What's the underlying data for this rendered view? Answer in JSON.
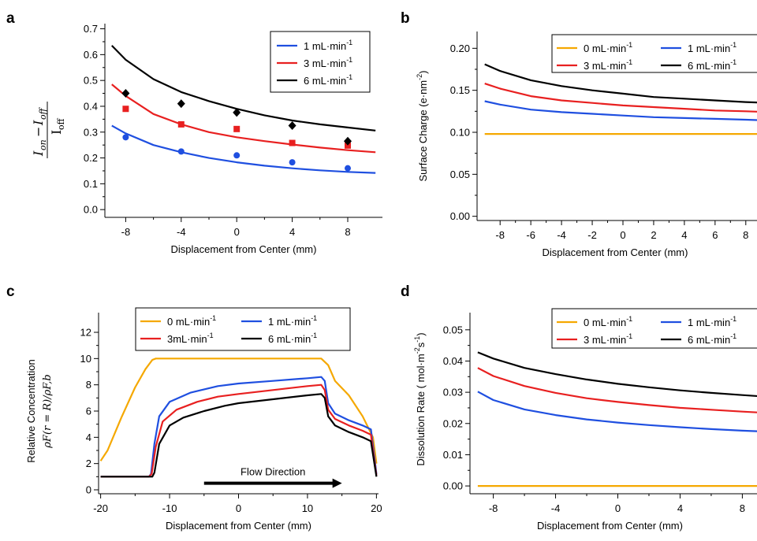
{
  "figure": {
    "panels": [
      {
        "letter": "a",
        "chart_data": {
          "type": "line",
          "xlabel": "Displacement from Center (mm)",
          "ylabel_expr": {
            "num_a": "I",
            "num_a_sub": "on",
            "minus": "−",
            "num_b": "I",
            "num_b_sub": "off",
            "den": "I",
            "den_sub": "off"
          },
          "xlim": [
            -9.5,
            10.5
          ],
          "ylim": [
            -0.03,
            0.72
          ],
          "xticks": [
            -8,
            -4,
            0,
            4,
            8
          ],
          "yticks": [
            0.0,
            0.1,
            0.2,
            0.3,
            0.4,
            0.5,
            0.6,
            0.7
          ],
          "ytick_format": "0.1",
          "grid": false,
          "legend_position": "top-right",
          "series": [
            {
              "name": "1 mL·min",
              "sup": "-1",
              "color": "#1f4fe0",
              "marker": "circle",
              "x": [
                -8,
                -4,
                0,
                4,
                8
              ],
              "y": [
                0.28,
                0.225,
                0.21,
                0.183,
                0.16
              ],
              "fit_x": [
                -9,
                -8,
                -6,
                -4,
                -2,
                0,
                2,
                4,
                6,
                8,
                10
              ],
              "fit_y": [
                0.325,
                0.295,
                0.25,
                0.222,
                0.2,
                0.183,
                0.17,
                0.16,
                0.152,
                0.146,
                0.142
              ]
            },
            {
              "name": "3 mL·min",
              "sup": "-1",
              "color": "#e82020",
              "marker": "square",
              "x": [
                -8,
                -4,
                0,
                4,
                8
              ],
              "y": [
                0.39,
                0.33,
                0.312,
                0.258,
                0.248
              ],
              "fit_x": [
                -9,
                -8,
                -6,
                -4,
                -2,
                0,
                2,
                4,
                6,
                8,
                10
              ],
              "fit_y": [
                0.485,
                0.44,
                0.37,
                0.33,
                0.3,
                0.28,
                0.265,
                0.252,
                0.24,
                0.23,
                0.222
              ]
            },
            {
              "name": "6 mL·min",
              "sup": "-1",
              "color": "#000000",
              "marker": "diamond",
              "x": [
                -8,
                -4,
                0,
                4,
                8
              ],
              "y": [
                0.45,
                0.41,
                0.376,
                0.325,
                0.265
              ],
              "fit_x": [
                -9,
                -8,
                -6,
                -4,
                -2,
                0,
                2,
                4,
                6,
                8,
                10
              ],
              "fit_y": [
                0.635,
                0.58,
                0.505,
                0.455,
                0.42,
                0.39,
                0.365,
                0.345,
                0.33,
                0.318,
                0.306
              ]
            }
          ]
        }
      },
      {
        "letter": "b",
        "chart_data": {
          "type": "line",
          "xlabel": "Displacement from Center (mm)",
          "ylabel": "Surface Charge (e·nm",
          "ylabel_sup": "-2",
          "ylabel_close": ")",
          "xlim": [
            -9.5,
            9.5
          ],
          "ylim": [
            -0.005,
            0.22
          ],
          "xticks": [
            -8,
            -6,
            -4,
            -2,
            0,
            2,
            4,
            6,
            8
          ],
          "yticks": [
            0.0,
            0.05,
            0.1,
            0.15,
            0.2
          ],
          "ytick_format": "0.01",
          "grid": false,
          "legend_position": "top-right",
          "series": [
            {
              "name": "0 mL·min",
              "sup": "-1",
              "color": "#f5a800",
              "x": [
                -9,
                -6,
                -3,
                0,
                3,
                6,
                9.5
              ],
              "y": [
                0.098,
                0.098,
                0.098,
                0.098,
                0.098,
                0.098,
                0.098
              ]
            },
            {
              "name": "1 mL·min",
              "sup": "-1",
              "color": "#1f4fe0",
              "x": [
                -9,
                -8,
                -6,
                -4,
                -2,
                0,
                2,
                4,
                6,
                8,
                9.5
              ],
              "y": [
                0.137,
                0.133,
                0.127,
                0.124,
                0.122,
                0.12,
                0.118,
                0.117,
                0.116,
                0.115,
                0.114
              ]
            },
            {
              "name": "3 mL·min",
              "sup": "-1",
              "color": "#e82020",
              "x": [
                -9,
                -8,
                -6,
                -4,
                -2,
                0,
                2,
                4,
                6,
                8,
                9.5
              ],
              "y": [
                0.158,
                0.152,
                0.143,
                0.138,
                0.135,
                0.132,
                0.13,
                0.128,
                0.126,
                0.125,
                0.124
              ]
            },
            {
              "name": "6 mL·min",
              "sup": "-1",
              "color": "#000000",
              "x": [
                -9,
                -8,
                -6,
                -4,
                -2,
                0,
                2,
                4,
                6,
                8,
                9.5
              ],
              "y": [
                0.181,
                0.173,
                0.162,
                0.155,
                0.15,
                0.146,
                0.142,
                0.14,
                0.138,
                0.136,
                0.135
              ]
            }
          ]
        }
      },
      {
        "letter": "c",
        "chart_data": {
          "type": "line",
          "xlabel": "Displacement from Center (mm)",
          "ylabel_line1": "Relative Concentration",
          "ylabel_line2": "ρF(r = R)/ρF,b",
          "xlim": [
            -20.3,
            20.3
          ],
          "ylim": [
            -0.3,
            13.5
          ],
          "xticks": [
            -20,
            -10,
            0,
            10,
            20
          ],
          "yticks": [
            0,
            2,
            4,
            6,
            8,
            10,
            12
          ],
          "ytick_format": "1",
          "grid": false,
          "legend_position": "top",
          "annotation": "Flow Direction",
          "arrow": {
            "from_x": -5,
            "to_x": 15,
            "y": 0.5
          },
          "series": [
            {
              "name": "0 mL·min",
              "sup": "-1",
              "color": "#f5a800",
              "x": [
                -20,
                -19,
                -17,
                -15,
                -13.5,
                -12.5,
                -12,
                -10,
                0,
                10,
                12,
                13,
                14,
                16,
                18,
                19.5,
                20
              ],
              "y": [
                2.2,
                3,
                5.5,
                7.8,
                9.2,
                9.9,
                10,
                10,
                10,
                10,
                10,
                9.5,
                8.3,
                7.2,
                5.6,
                4,
                2
              ]
            },
            {
              "name": "1 mL·min",
              "sup": "-1",
              "color": "#1f4fe0",
              "x": [
                -20,
                -13,
                -12.7,
                -12.2,
                -11.5,
                -10,
                -7,
                -3,
                0,
                5,
                10,
                12,
                12.5,
                13,
                14,
                16,
                18,
                19.2,
                19.7,
                20
              ],
              "y": [
                1,
                1,
                1.2,
                3.5,
                5.6,
                6.7,
                7.4,
                7.9,
                8.1,
                8.3,
                8.5,
                8.6,
                8.3,
                6.6,
                5.8,
                5.3,
                4.9,
                4.6,
                2.5,
                1.2
              ]
            },
            {
              "name": "3mL·min",
              "sup": "-1",
              "color": "#e82020",
              "x": [
                -20,
                -13,
                -12.6,
                -12,
                -11,
                -9,
                -6,
                -3,
                0,
                5,
                10,
                12,
                12.5,
                13,
                14,
                16,
                18,
                19.2,
                19.7,
                20
              ],
              "y": [
                1,
                1,
                1.2,
                3.3,
                5.2,
                6.1,
                6.7,
                7.1,
                7.3,
                7.6,
                7.9,
                8,
                7.6,
                6.1,
                5.4,
                4.9,
                4.5,
                4.2,
                2.2,
                1.1
              ]
            },
            {
              "name": "6 mL·min",
              "sup": "-1",
              "color": "#000000",
              "x": [
                -20,
                -12.5,
                -12.2,
                -11.5,
                -10,
                -8,
                -5,
                -2,
                0,
                5,
                10,
                12,
                12.5,
                13,
                14,
                16,
                18,
                19.2,
                19.7,
                20
              ],
              "y": [
                1,
                1,
                1.3,
                3.5,
                4.9,
                5.5,
                6,
                6.4,
                6.6,
                6.9,
                7.2,
                7.3,
                7,
                5.6,
                4.9,
                4.4,
                4,
                3.7,
                2,
                1
              ]
            }
          ]
        }
      },
      {
        "letter": "d",
        "chart_data": {
          "type": "line",
          "xlabel": "Displacement from Center (mm)",
          "ylabel": "Dissolution Rate (  mol·m",
          "ylabel_sup1": "-2",
          "ylabel_mid": "s",
          "ylabel_sup2": "-1",
          "ylabel_close": ")",
          "xlim": [
            -9.5,
            9.5
          ],
          "ylim": [
            -0.0025,
            0.0555
          ],
          "xticks": [
            -8,
            -4,
            0,
            4,
            8
          ],
          "yticks": [
            0.0,
            0.01,
            0.02,
            0.03,
            0.04,
            0.05
          ],
          "ytick_format": "0.01",
          "grid": false,
          "legend_position": "top-right",
          "series": [
            {
              "name": "0 mL·min",
              "sup": "-1",
              "color": "#f5a800",
              "x": [
                -9,
                -6,
                -3,
                0,
                3,
                6,
                9.5
              ],
              "y": [
                0,
                0,
                0,
                0,
                0,
                0,
                0
              ]
            },
            {
              "name": "1 mL·min",
              "sup": "-1",
              "color": "#1f4fe0",
              "x": [
                -9,
                -8,
                -6,
                -4,
                -2,
                0,
                2,
                4,
                6,
                8,
                9.5
              ],
              "y": [
                0.0302,
                0.0275,
                0.0245,
                0.0227,
                0.0213,
                0.0203,
                0.0195,
                0.0188,
                0.0182,
                0.0177,
                0.0174
              ]
            },
            {
              "name": "3 mL·min",
              "sup": "-1",
              "color": "#e82020",
              "x": [
                -9,
                -8,
                -6,
                -4,
                -2,
                0,
                2,
                4,
                6,
                8,
                9.5
              ],
              "y": [
                0.0378,
                0.0352,
                0.032,
                0.0298,
                0.0281,
                0.0269,
                0.0259,
                0.025,
                0.0244,
                0.0238,
                0.0234
              ]
            },
            {
              "name": "6 mL·min",
              "sup": "-1",
              "color": "#000000",
              "x": [
                -9,
                -8,
                -6,
                -4,
                -2,
                0,
                2,
                4,
                6,
                8,
                9.5
              ],
              "y": [
                0.0428,
                0.0408,
                0.0378,
                0.0358,
                0.0341,
                0.0327,
                0.0316,
                0.0306,
                0.0298,
                0.0291,
                0.0286
              ]
            }
          ]
        }
      }
    ]
  }
}
